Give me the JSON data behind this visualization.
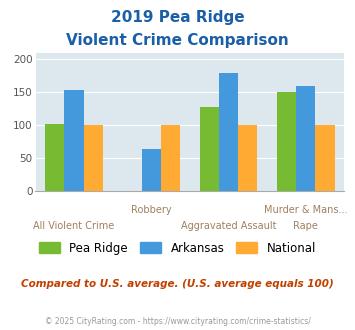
{
  "cat_row1": [
    "",
    "Robbery",
    "",
    "Murder & Mans..."
  ],
  "cat_row2": [
    "All Violent Crime",
    "",
    "Aggravated Assault",
    "Rape"
  ],
  "pea_ridge": [
    102,
    0,
    128,
    151
  ],
  "arkansas": [
    153,
    65,
    180,
    160
  ],
  "national": [
    100,
    100,
    100,
    100
  ],
  "pea_ridge_color": "#77bb33",
  "arkansas_color": "#4499dd",
  "national_color": "#ffaa33",
  "title_line1": "2019 Pea Ridge",
  "title_line2": "Violent Crime Comparison",
  "title_color": "#1a5fa8",
  "ylim": [
    0,
    210
  ],
  "yticks": [
    0,
    50,
    100,
    150,
    200
  ],
  "plot_bg": "#dce8ee",
  "note_text": "Compared to U.S. average. (U.S. average equals 100)",
  "note_color": "#c04000",
  "footer_text": "© 2025 CityRating.com - https://www.cityrating.com/crime-statistics/",
  "footer_color": "#999999",
  "label_color": "#a08060",
  "bar_width": 0.25,
  "legend_labels": [
    "Pea Ridge",
    "Arkansas",
    "National"
  ]
}
